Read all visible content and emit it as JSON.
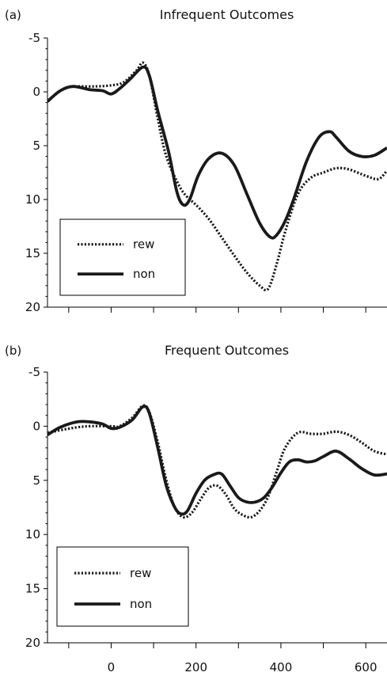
{
  "chart_data": [
    {
      "type": "line",
      "panel_label": "(a)",
      "title": "Infrequent Outcomes",
      "xlabel": "",
      "ylabel": "",
      "xlim": [
        -150,
        650
      ],
      "ylim": [
        -5,
        20
      ],
      "y_inverted": true,
      "x_ticks": [
        -100,
        0,
        100,
        200,
        300,
        400,
        500,
        600
      ],
      "x_tick_labels": [],
      "y_ticks": [
        -5,
        0,
        5,
        10,
        15,
        20
      ],
      "y_tick_labels": [
        "-5",
        "0",
        "5",
        "10",
        "15",
        "20"
      ],
      "legend_position": "lower-left",
      "series": [
        {
          "name": "rew",
          "style": "dotted",
          "x": [
            -150,
            -110,
            -80,
            -40,
            0,
            30,
            60,
            75,
            90,
            110,
            130,
            160,
            180,
            200,
            230,
            260,
            290,
            320,
            350,
            370,
            390,
            410,
            440,
            470,
            500,
            530,
            560,
            600,
            630,
            650
          ],
          "y": [
            0.8,
            -0.3,
            -0.5,
            -0.5,
            -0.6,
            -0.9,
            -2.0,
            -2.7,
            -1.5,
            2.5,
            6.0,
            8.7,
            9.8,
            10.5,
            11.8,
            13.5,
            15.2,
            16.8,
            18.0,
            18.3,
            16.0,
            13.0,
            9.5,
            8.0,
            7.5,
            7.1,
            7.2,
            7.8,
            8.1,
            7.3
          ]
        },
        {
          "name": "non",
          "style": "solid",
          "x": [
            -150,
            -120,
            -90,
            -50,
            -20,
            0,
            20,
            45,
            75,
            90,
            110,
            135,
            155,
            170,
            185,
            205,
            230,
            260,
            290,
            320,
            350,
            375,
            390,
            410,
            430,
            460,
            490,
            515,
            530,
            560,
            590,
            620,
            650
          ],
          "y": [
            0.9,
            -0.1,
            -0.5,
            -0.2,
            -0.1,
            0.2,
            -0.3,
            -1.2,
            -2.3,
            -1.5,
            1.8,
            5.5,
            9.3,
            10.5,
            10.0,
            7.8,
            6.2,
            5.7,
            6.8,
            9.5,
            12.2,
            13.5,
            13.3,
            12.0,
            10.0,
            6.5,
            4.2,
            3.7,
            4.2,
            5.5,
            6.0,
            5.9,
            5.2
          ]
        }
      ]
    },
    {
      "type": "line",
      "panel_label": "(b)",
      "title": "Frequent Outcomes",
      "xlabel": "",
      "ylabel": "",
      "xlim": [
        -150,
        650
      ],
      "ylim": [
        -5,
        20
      ],
      "y_inverted": true,
      "x_ticks": [
        -100,
        0,
        100,
        200,
        300,
        400,
        500,
        600
      ],
      "x_tick_labels": [
        "0",
        "200",
        "400",
        "600"
      ],
      "x_tick_label_values": [
        0,
        200,
        400,
        600
      ],
      "y_ticks": [
        -5,
        0,
        5,
        10,
        15,
        20
      ],
      "y_tick_labels": [
        "-5",
        "0",
        "5",
        "10",
        "15",
        "20"
      ],
      "legend_position": "lower-left",
      "series": [
        {
          "name": "rew",
          "style": "dotted",
          "x": [
            -150,
            -110,
            -80,
            -50,
            0,
            20,
            50,
            75,
            90,
            110,
            130,
            150,
            170,
            190,
            210,
            230,
            250,
            270,
            290,
            310,
            330,
            350,
            370,
            390,
            410,
            440,
            470,
            500,
            530,
            560,
            590,
            620,
            650
          ],
          "y": [
            0.6,
            0.3,
            0.1,
            0.0,
            0.0,
            0.0,
            -0.8,
            -1.9,
            -1.3,
            1.5,
            5.0,
            7.5,
            8.4,
            8.0,
            6.8,
            5.7,
            5.5,
            6.3,
            7.6,
            8.2,
            8.4,
            7.8,
            6.5,
            4.2,
            2.0,
            0.6,
            0.7,
            0.7,
            0.5,
            0.8,
            1.5,
            2.3,
            2.6
          ]
        },
        {
          "name": "non",
          "style": "solid",
          "x": [
            -150,
            -120,
            -80,
            -50,
            -20,
            0,
            20,
            50,
            75,
            90,
            110,
            130,
            150,
            165,
            180,
            200,
            220,
            240,
            260,
            280,
            300,
            320,
            340,
            360,
            380,
            400,
            420,
            440,
            460,
            480,
            500,
            530,
            560,
            590,
            620,
            650
          ],
          "y": [
            0.8,
            0.1,
            -0.4,
            -0.4,
            -0.2,
            0.2,
            0.1,
            -0.6,
            -1.8,
            -1.2,
            2.0,
            5.5,
            7.5,
            8.1,
            7.8,
            6.2,
            5.0,
            4.5,
            4.4,
            5.5,
            6.6,
            7.0,
            7.0,
            6.6,
            5.6,
            4.3,
            3.3,
            3.1,
            3.3,
            3.2,
            2.8,
            2.3,
            3.0,
            3.9,
            4.5,
            4.4
          ]
        }
      ]
    }
  ]
}
